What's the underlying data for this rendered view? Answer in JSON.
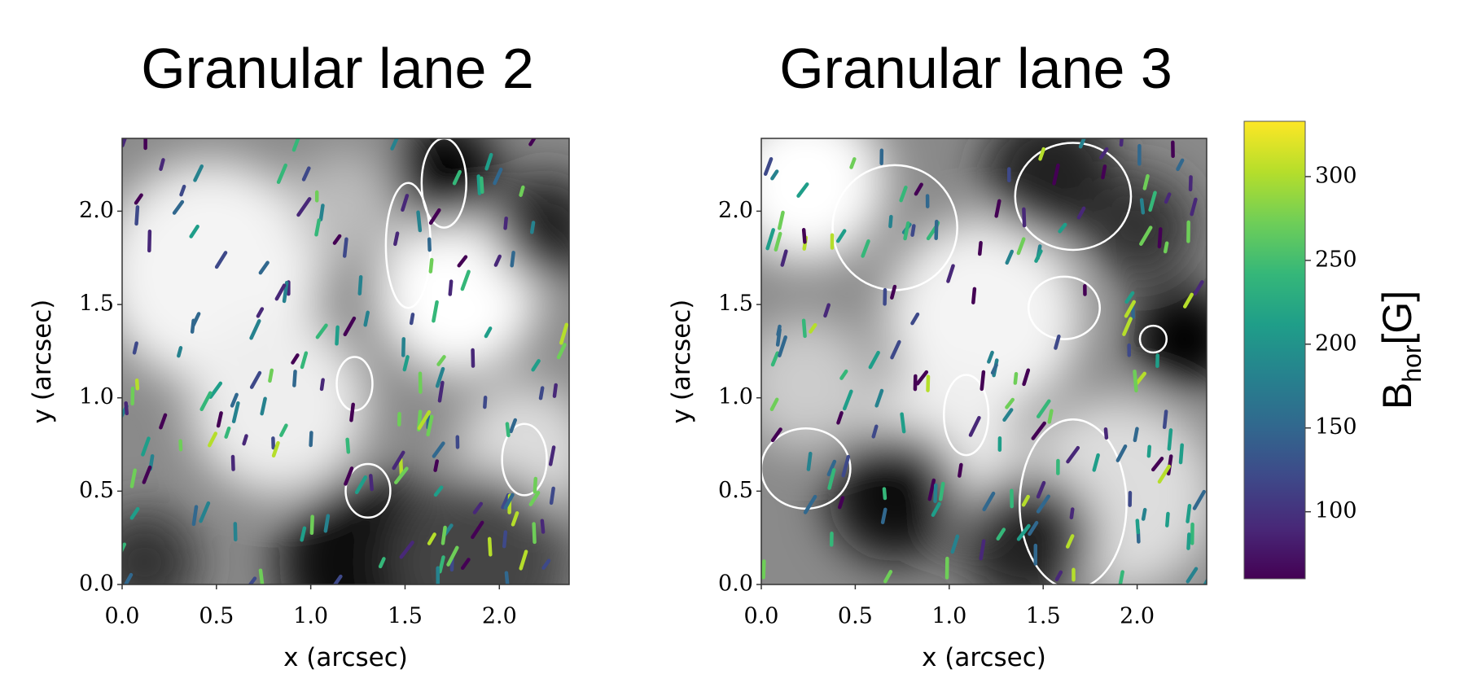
{
  "chart_data": [
    {
      "type": "image",
      "title": "Granular lane 2",
      "xlabel": "x (arcsec)",
      "ylabel": "y (arcsec)",
      "xlim": [
        0,
        2.37
      ],
      "ylim": [
        0,
        2.39
      ],
      "xticks": [
        {
          "value": 0,
          "label": "0.0"
        },
        {
          "value": 0.5,
          "label": "0.5"
        },
        {
          "value": 1,
          "label": "1.0"
        },
        {
          "value": 1.5,
          "label": "1.5"
        },
        {
          "value": 2,
          "label": "2.0"
        }
      ],
      "yticks": [
        {
          "value": 0,
          "label": "0.0"
        },
        {
          "value": 0.5,
          "label": "0.5"
        },
        {
          "value": 1,
          "label": "1.0"
        },
        {
          "value": 1.5,
          "label": "1.5"
        },
        {
          "value": 2,
          "label": "2.0"
        }
      ]
    },
    {
      "type": "image",
      "title": "Granular lane 3",
      "xlabel": "x (arcsec)",
      "ylabel": "y (arcsec)",
      "xlim": [
        0,
        2.37
      ],
      "ylim": [
        0,
        2.39
      ],
      "xticks": [
        {
          "value": 0,
          "label": "0.0"
        },
        {
          "value": 0.5,
          "label": "0.5"
        },
        {
          "value": 1,
          "label": "1.0"
        },
        {
          "value": 1.5,
          "label": "1.5"
        },
        {
          "value": 2,
          "label": "2.0"
        }
      ],
      "yticks": [
        {
          "value": 0,
          "label": "0.0"
        },
        {
          "value": 0.5,
          "label": "0.5"
        },
        {
          "value": 1,
          "label": "1.0"
        },
        {
          "value": 1.5,
          "label": "1.5"
        },
        {
          "value": 2,
          "label": "2.0"
        }
      ],
      "colorbar": {
        "label": {
          "base": "B",
          "sub": "hor",
          "unit": "[G]"
        },
        "colormap": "viridis",
        "clim": [
          60,
          333
        ],
        "ticks": [
          100,
          150,
          200,
          250,
          300
        ]
      }
    }
  ]
}
